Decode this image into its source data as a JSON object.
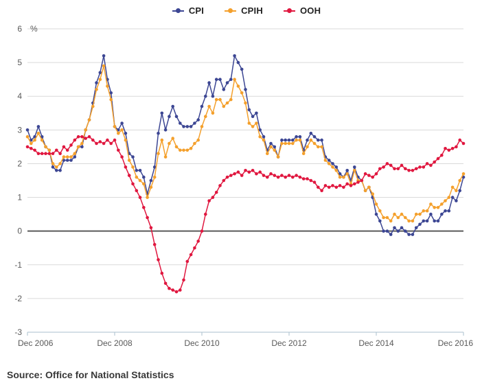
{
  "legend": [
    {
      "label": "CPI",
      "color": "#3c4693"
    },
    {
      "label": "CPIH",
      "color": "#f4a02c"
    },
    {
      "label": "OOH",
      "color": "#e0173f"
    }
  ],
  "source_label": "Source: Office for National Statistics",
  "chart_data": {
    "type": "line",
    "title": "",
    "ylabel": "%",
    "xlabel": "",
    "ylim": [
      -3,
      6
    ],
    "y_ticks": [
      6,
      5,
      4,
      3,
      2,
      1,
      0,
      -1,
      -2,
      -3
    ],
    "grid": true,
    "zero_line": true,
    "legend_position": "top-center",
    "x_frequency": "monthly",
    "x_start": "Dec 2006",
    "x_end": "Dec 2016",
    "x_tick_labels": [
      "Dec 2006",
      "Dec 2008",
      "Dec 2010",
      "Dec 2012",
      "Dec 2014",
      "Dec 2016"
    ],
    "x_tick_months": [
      0,
      24,
      48,
      72,
      96,
      120
    ],
    "series": [
      {
        "name": "CPI",
        "color": "#3c4693",
        "values": [
          3.0,
          2.7,
          2.8,
          3.1,
          2.8,
          2.5,
          2.4,
          1.9,
          1.8,
          1.8,
          2.1,
          2.1,
          2.1,
          2.2,
          2.5,
          2.5,
          3.0,
          3.3,
          3.8,
          4.4,
          4.7,
          5.2,
          4.5,
          4.1,
          3.1,
          3.0,
          3.2,
          2.9,
          2.3,
          2.2,
          1.8,
          1.8,
          1.6,
          1.1,
          1.5,
          1.9,
          2.9,
          3.5,
          3.0,
          3.4,
          3.7,
          3.4,
          3.2,
          3.1,
          3.1,
          3.1,
          3.2,
          3.3,
          3.7,
          4.0,
          4.4,
          4.0,
          4.5,
          4.5,
          4.2,
          4.4,
          4.5,
          5.2,
          5.0,
          4.8,
          4.2,
          3.6,
          3.4,
          3.5,
          3.0,
          2.8,
          2.4,
          2.6,
          2.5,
          2.2,
          2.7,
          2.7,
          2.7,
          2.7,
          2.8,
          2.8,
          2.4,
          2.7,
          2.9,
          2.8,
          2.7,
          2.7,
          2.2,
          2.1,
          2.0,
          1.9,
          1.7,
          1.6,
          1.8,
          1.5,
          1.9,
          1.6,
          1.5,
          1.2,
          1.3,
          1.0,
          0.5,
          0.3,
          0.0,
          0.0,
          -0.1,
          0.1,
          0.0,
          0.1,
          0.0,
          -0.1,
          -0.1,
          0.1,
          0.2,
          0.3,
          0.3,
          0.5,
          0.3,
          0.3,
          0.5,
          0.6,
          0.6,
          1.0,
          0.9,
          1.2,
          1.6
        ]
      },
      {
        "name": "CPIH",
        "color": "#f4a02c",
        "values": [
          2.8,
          2.6,
          2.7,
          2.9,
          2.7,
          2.5,
          2.4,
          2.0,
          1.9,
          2.0,
          2.2,
          2.2,
          2.2,
          2.3,
          2.5,
          2.6,
          3.0,
          3.3,
          3.7,
          4.2,
          4.5,
          4.9,
          4.3,
          3.9,
          3.1,
          2.9,
          3.0,
          2.7,
          2.1,
          1.9,
          1.6,
          1.5,
          1.4,
          1.0,
          1.3,
          1.6,
          2.3,
          2.7,
          2.2,
          2.6,
          2.75,
          2.5,
          2.4,
          2.4,
          2.4,
          2.45,
          2.6,
          2.7,
          3.1,
          3.4,
          3.7,
          3.5,
          3.9,
          3.9,
          3.7,
          3.8,
          3.9,
          4.5,
          4.3,
          4.1,
          3.8,
          3.2,
          3.1,
          3.2,
          2.8,
          2.7,
          2.3,
          2.5,
          2.4,
          2.2,
          2.6,
          2.6,
          2.6,
          2.6,
          2.7,
          2.7,
          2.3,
          2.5,
          2.7,
          2.6,
          2.5,
          2.5,
          2.1,
          2.0,
          1.9,
          1.8,
          1.6,
          1.6,
          1.7,
          1.4,
          1.8,
          1.5,
          1.5,
          1.2,
          1.3,
          1.1,
          0.8,
          0.6,
          0.4,
          0.4,
          0.3,
          0.5,
          0.4,
          0.5,
          0.4,
          0.3,
          0.3,
          0.5,
          0.5,
          0.6,
          0.6,
          0.8,
          0.7,
          0.7,
          0.8,
          0.9,
          1.0,
          1.3,
          1.2,
          1.5,
          1.7
        ]
      },
      {
        "name": "OOH",
        "color": "#e0173f",
        "values": [
          2.5,
          2.45,
          2.4,
          2.3,
          2.3,
          2.3,
          2.3,
          2.3,
          2.4,
          2.3,
          2.5,
          2.4,
          2.55,
          2.7,
          2.8,
          2.8,
          2.75,
          2.8,
          2.7,
          2.6,
          2.65,
          2.6,
          2.7,
          2.6,
          2.7,
          2.4,
          2.2,
          1.9,
          1.65,
          1.4,
          1.2,
          1.0,
          0.7,
          0.4,
          0.1,
          -0.4,
          -0.85,
          -1.25,
          -1.55,
          -1.7,
          -1.75,
          -1.8,
          -1.75,
          -1.45,
          -0.9,
          -0.7,
          -0.5,
          -0.3,
          0.0,
          0.5,
          0.9,
          1.0,
          1.15,
          1.35,
          1.5,
          1.6,
          1.65,
          1.7,
          1.75,
          1.65,
          1.8,
          1.75,
          1.8,
          1.7,
          1.75,
          1.65,
          1.6,
          1.7,
          1.65,
          1.6,
          1.65,
          1.6,
          1.65,
          1.6,
          1.65,
          1.6,
          1.55,
          1.55,
          1.5,
          1.45,
          1.3,
          1.2,
          1.35,
          1.3,
          1.35,
          1.3,
          1.35,
          1.3,
          1.4,
          1.35,
          1.4,
          1.45,
          1.5,
          1.7,
          1.65,
          1.6,
          1.7,
          1.85,
          1.9,
          2.0,
          1.95,
          1.85,
          1.85,
          1.95,
          1.85,
          1.8,
          1.8,
          1.85,
          1.9,
          1.9,
          2.0,
          1.95,
          2.05,
          2.15,
          2.25,
          2.45,
          2.4,
          2.45,
          2.5,
          2.7,
          2.6
        ]
      }
    ],
    "style": {
      "grid_color": "#d9d9d9",
      "zero_line_color": "#595959",
      "axis_line_color": "#aabfcd",
      "tick_label_color": "#595959"
    }
  }
}
